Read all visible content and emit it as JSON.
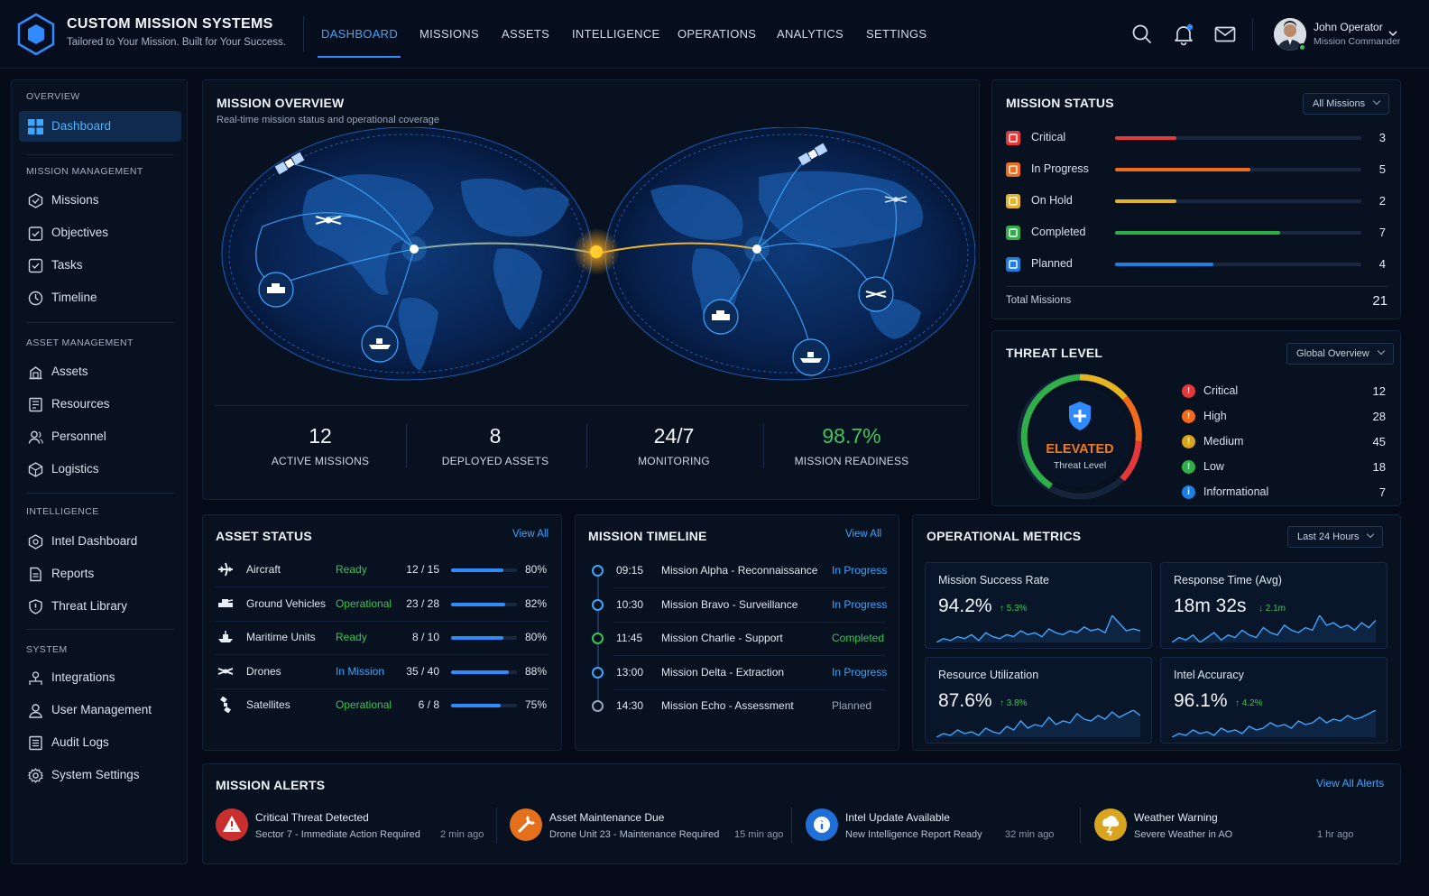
{
  "brand": {
    "title": "CUSTOM MISSION SYSTEMS",
    "subtitle": "Tailored to Your Mission. Built for Your Success."
  },
  "nav": [
    {
      "label": "DASHBOARD",
      "active": true
    },
    {
      "label": "MISSIONS"
    },
    {
      "label": "ASSETS"
    },
    {
      "label": "INTELLIGENCE"
    },
    {
      "label": "OPERATIONS"
    },
    {
      "label": "ANALYTICS"
    },
    {
      "label": "SETTINGS"
    }
  ],
  "user": {
    "name": "John Operator",
    "role": "Mission Commander"
  },
  "sidebar": {
    "sections": [
      "OVERVIEW",
      "MISSION MANAGEMENT",
      "ASSET MANAGEMENT",
      "INTELLIGENCE",
      "SYSTEM"
    ],
    "items": [
      {
        "label": "Dashboard",
        "icon": "dashboard-icon",
        "active": true
      },
      {
        "label": "Missions",
        "icon": "missions-icon"
      },
      {
        "label": "Objectives",
        "icon": "objectives-icon"
      },
      {
        "label": "Tasks",
        "icon": "tasks-icon"
      },
      {
        "label": "Timeline",
        "icon": "clock-icon"
      },
      {
        "label": "Assets",
        "icon": "assets-icon"
      },
      {
        "label": "Resources",
        "icon": "resources-icon"
      },
      {
        "label": "Personnel",
        "icon": "personnel-icon"
      },
      {
        "label": "Logistics",
        "icon": "logistics-icon"
      },
      {
        "label": "Intel Dashboard",
        "icon": "intel-icon"
      },
      {
        "label": "Reports",
        "icon": "reports-icon"
      },
      {
        "label": "Threat Library",
        "icon": "threat-library-icon"
      },
      {
        "label": "Integrations",
        "icon": "integrations-icon"
      },
      {
        "label": "User Management",
        "icon": "user-icon"
      },
      {
        "label": "Audit Logs",
        "icon": "audit-icon"
      },
      {
        "label": "System Settings",
        "icon": "gear-icon"
      }
    ]
  },
  "overview": {
    "title": "MISSION OVERVIEW",
    "subtitle": "Real-time mission status and operational coverage",
    "stats": [
      {
        "value": "12",
        "label": "ACTIVE MISSIONS"
      },
      {
        "value": "8",
        "label": "DEPLOYED ASSETS"
      },
      {
        "value": "24/7",
        "label": "MONITORING"
      },
      {
        "value": "98.7%",
        "label": "MISSION READINESS"
      }
    ]
  },
  "mission_status": {
    "title": "MISSION STATUS",
    "filter": "All Missions",
    "rows": [
      {
        "label": "Critical",
        "value": "3",
        "color": "#e5383b",
        "fill": 0.25
      },
      {
        "label": "In Progress",
        "value": "5",
        "color": "#f26b1d",
        "fill": 0.55
      },
      {
        "label": "On Hold",
        "value": "2",
        "color": "#e6b422",
        "fill": 0.25
      },
      {
        "label": "Completed",
        "value": "7",
        "color": "#2fae4a",
        "fill": 0.67
      },
      {
        "label": "Planned",
        "value": "4",
        "color": "#1f7fe0",
        "fill": 0.4
      }
    ],
    "total_label": "Total Missions",
    "total": "21"
  },
  "threat": {
    "title": "THREAT LEVEL",
    "filter": "Global Overview",
    "level": "ELEVATED",
    "level_sub": "Threat Level",
    "rows": [
      {
        "label": "Critical",
        "value": "12",
        "color": "#e5383b",
        "glyph": "!"
      },
      {
        "label": "High",
        "value": "28",
        "color": "#f26b1d",
        "glyph": "!"
      },
      {
        "label": "Medium",
        "value": "45",
        "color": "#d9a520",
        "glyph": "!"
      },
      {
        "label": "Low",
        "value": "18",
        "color": "#2fae4a",
        "glyph": "!"
      },
      {
        "label": "Informational",
        "value": "7",
        "color": "#1f7fe0",
        "glyph": "i"
      }
    ]
  },
  "asset_status": {
    "title": "ASSET STATUS",
    "view_all": "View All",
    "rows": [
      {
        "name": "Aircraft",
        "icon": "aircraft-icon",
        "status": "Ready",
        "status_color": "#37c55a",
        "count": "12 / 15",
        "pct": "80%",
        "fill": 0.8
      },
      {
        "name": "Ground Vehicles",
        "icon": "ground-vehicle-icon",
        "status": "Operational",
        "status_color": "#37c55a",
        "count": "23 / 28",
        "pct": "82%",
        "fill": 0.82
      },
      {
        "name": "Maritime Units",
        "icon": "ship-icon",
        "status": "Ready",
        "status_color": "#37c55a",
        "count": "8 / 10",
        "pct": "80%",
        "fill": 0.8
      },
      {
        "name": "Drones",
        "icon": "drone-icon",
        "status": "In Mission",
        "status_color": "#3ea6ff",
        "count": "35 / 40",
        "pct": "88%",
        "fill": 0.88
      },
      {
        "name": "Satellites",
        "icon": "satellite-icon",
        "status": "Operational",
        "status_color": "#37c55a",
        "count": "6 / 8",
        "pct": "75%",
        "fill": 0.75
      }
    ]
  },
  "timeline": {
    "title": "MISSION TIMELINE",
    "view_all": "View All",
    "rows": [
      {
        "time": "09:15",
        "name": "Mission Alpha - Reconnaissance",
        "status": "In Progress",
        "color": "#3ea6ff"
      },
      {
        "time": "10:30",
        "name": "Mission Bravo - Surveillance",
        "status": "In Progress",
        "color": "#3ea6ff"
      },
      {
        "time": "11:45",
        "name": "Mission Charlie - Support",
        "status": "Completed",
        "color": "#37c55a"
      },
      {
        "time": "13:00",
        "name": "Mission Delta - Extraction",
        "status": "In Progress",
        "color": "#3ea6ff"
      },
      {
        "time": "14:30",
        "name": "Mission Echo - Assessment",
        "status": "Planned",
        "color": "#9aa7bb"
      }
    ]
  },
  "metrics": {
    "title": "OPERATIONAL METRICS",
    "filter": "Last 24 Hours",
    "cards": [
      {
        "name": "Mission Success Rate",
        "value": "94.2%",
        "delta": "↑ 5.3%",
        "delta_color": "#37c55a",
        "spark": [
          4,
          6,
          5,
          7,
          6,
          8,
          5,
          9,
          7,
          6,
          8,
          7,
          10,
          8,
          9,
          7,
          11,
          9,
          8,
          10,
          9,
          12,
          10,
          11,
          9,
          18,
          14,
          10,
          11,
          10
        ]
      },
      {
        "name": "Response Time (Avg)",
        "value": "18m 32s",
        "delta": "↓ 2.1m",
        "delta_color": "#37c55a",
        "spark": [
          5,
          7,
          6,
          8,
          5,
          7,
          9,
          6,
          8,
          7,
          10,
          8,
          7,
          11,
          9,
          8,
          12,
          10,
          9,
          11,
          10,
          16,
          12,
          13,
          11,
          12,
          10,
          13,
          11,
          14
        ]
      },
      {
        "name": "Resource Utilization",
        "value": "87.6%",
        "delta": "↑ 3.8%",
        "delta_color": "#37c55a",
        "spark": [
          3,
          5,
          4,
          7,
          5,
          6,
          4,
          8,
          6,
          5,
          9,
          7,
          12,
          8,
          10,
          9,
          14,
          10,
          12,
          11,
          16,
          13,
          12,
          15,
          13,
          17,
          14,
          16,
          18,
          15
        ]
      },
      {
        "name": "Intel Accuracy",
        "value": "96.1%",
        "delta": "↑ 4.2%",
        "delta_color": "#37c55a",
        "spark": [
          4,
          6,
          5,
          8,
          6,
          7,
          5,
          9,
          7,
          8,
          6,
          10,
          8,
          9,
          12,
          10,
          11,
          9,
          13,
          11,
          12,
          15,
          12,
          14,
          13,
          16,
          14,
          15,
          17,
          19
        ]
      }
    ]
  },
  "alerts": {
    "title": "MISSION ALERTS",
    "view_all": "View All Alerts",
    "items": [
      {
        "title": "Critical Threat Detected",
        "sub": "Sector 7 - Immediate Action Required",
        "time": "2 min ago",
        "color": "#c8302f",
        "icon": "warning-icon"
      },
      {
        "title": "Asset Maintenance Due",
        "sub": "Drone Unit 23 - Maintenance Required",
        "time": "15 min ago",
        "color": "#e4701c",
        "icon": "wrench-icon"
      },
      {
        "title": "Intel Update Available",
        "sub": "New Intelligence Report Ready",
        "time": "32 min ago",
        "color": "#1f6fd6",
        "icon": "info-icon"
      },
      {
        "title": "Weather Warning",
        "sub": "Severe Weather in AO",
        "time": "1 hr ago",
        "color": "#d9a520",
        "icon": "storm-icon"
      }
    ]
  }
}
